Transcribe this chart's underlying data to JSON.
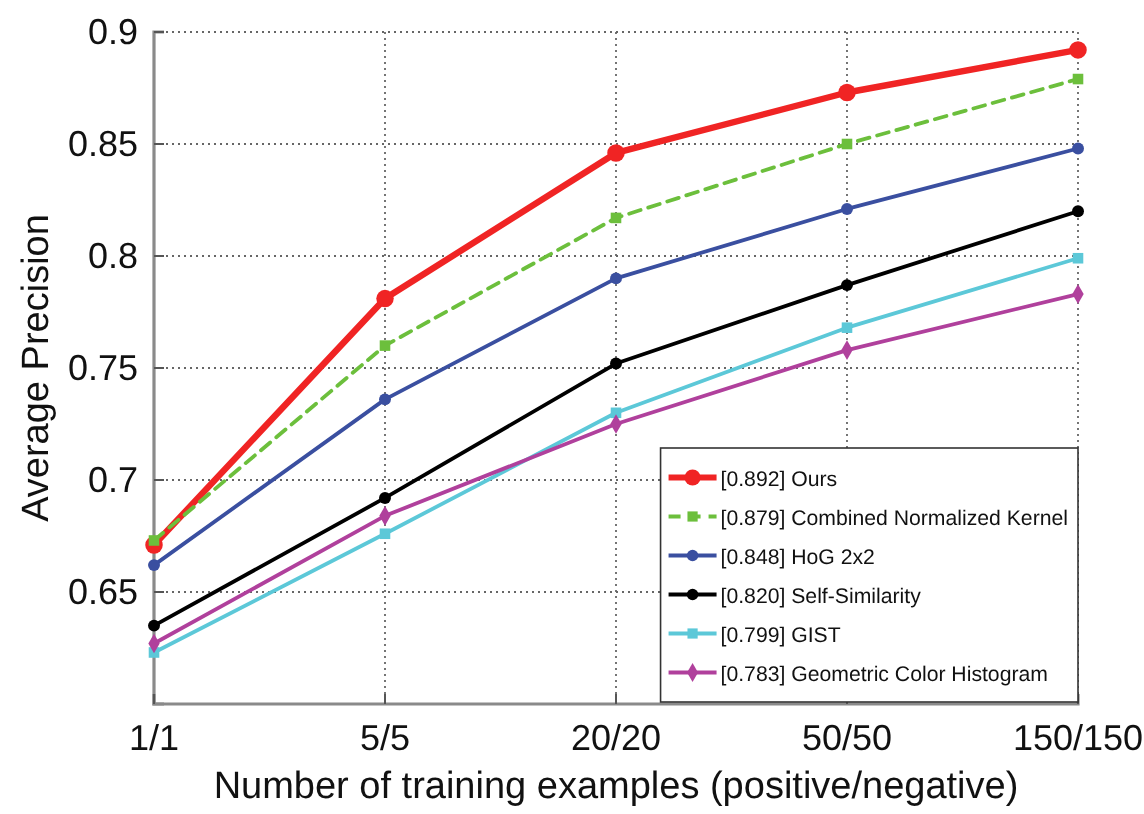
{
  "chart_data": {
    "type": "line",
    "xlabel": "Number of training examples (positive/negative)",
    "ylabel": "Average Precision",
    "categories": [
      "1/1",
      "5/5",
      "20/20",
      "50/50",
      "150/150"
    ],
    "series": [
      {
        "name": "[0.892] Ours",
        "color": "#f02424",
        "marker": "circle",
        "line_style": "solid",
        "values": [
          0.671,
          0.781,
          0.846,
          0.873,
          0.892
        ]
      },
      {
        "name": "[0.879] Combined Normalized Kernel",
        "color": "#6cbf3c",
        "marker": "square",
        "line_style": "dashed",
        "values": [
          0.673,
          0.76,
          0.817,
          0.85,
          0.879
        ]
      },
      {
        "name": "[0.848] HoG 2x2",
        "color": "#3a4fa0",
        "marker": "circle",
        "line_style": "solid",
        "values": [
          0.662,
          0.736,
          0.79,
          0.821,
          0.848
        ]
      },
      {
        "name": "[0.820] Self-Similarity",
        "color": "#000000",
        "marker": "circle",
        "line_style": "solid",
        "values": [
          0.635,
          0.692,
          0.752,
          0.787,
          0.82
        ]
      },
      {
        "name": "[0.799] GIST",
        "color": "#5cc8d8",
        "marker": "square",
        "line_style": "solid",
        "values": [
          0.623,
          0.676,
          0.73,
          0.768,
          0.799
        ]
      },
      {
        "name": "[0.783] Geometric Color Histogram",
        "color": "#b0409c",
        "marker": "diamond",
        "line_style": "solid",
        "values": [
          0.627,
          0.684,
          0.725,
          0.758,
          0.783
        ]
      }
    ],
    "ylim": [
      0.6,
      0.9
    ],
    "yticks": [
      0.65,
      0.7,
      0.75,
      0.8,
      0.85,
      0.9
    ],
    "grid": true,
    "legend": "bottom right"
  }
}
